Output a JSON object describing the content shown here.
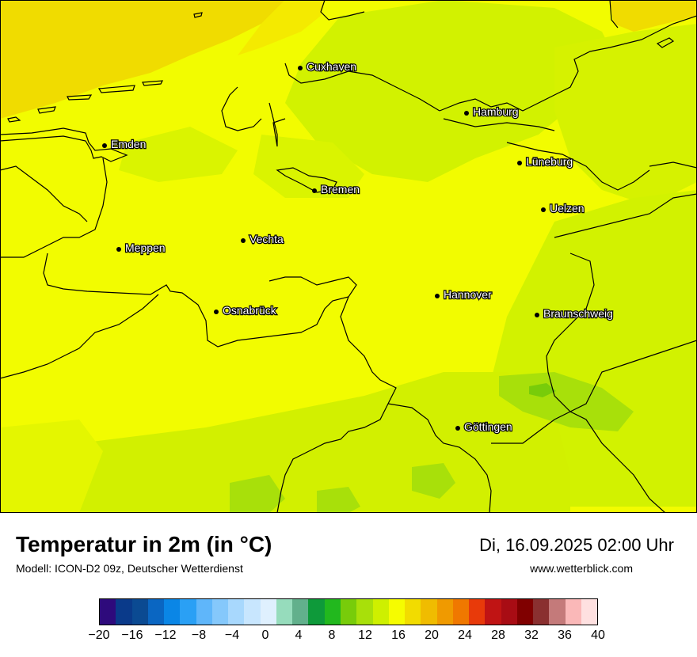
{
  "map": {
    "title": "Temperatur in 2m (in °C)",
    "model": "Modell: ICON-D2 09z, Deutscher Wetterdienst",
    "valid_time": "Di, 16.09.2025 02:00 Uhr",
    "website": "www.wetterblick.com",
    "cities": [
      {
        "name": "Cuxhaven"
      },
      {
        "name": "Hamburg"
      },
      {
        "name": "Emden"
      },
      {
        "name": "Lüneburg"
      },
      {
        "name": "Bremen"
      },
      {
        "name": "Uelzen"
      },
      {
        "name": "Vechta"
      },
      {
        "name": "Meppen"
      },
      {
        "name": "Hannover"
      },
      {
        "name": "Osnabrück"
      },
      {
        "name": "Braunschweig"
      },
      {
        "name": "Göttingen"
      }
    ]
  },
  "legend": {
    "colors": [
      "#2e0a7c",
      "#0a3a8a",
      "#0b4a92",
      "#0a66c2",
      "#0a86e6",
      "#2aa0f5",
      "#5fb6fa",
      "#85c8fb",
      "#a8d8fd",
      "#c8e6fe",
      "#dff0fe",
      "#96dcbc",
      "#62b08c",
      "#0e9a3a",
      "#22b81e",
      "#78cc0a",
      "#a8e00a",
      "#cef000",
      "#f6fc00",
      "#f2dc00",
      "#f0bc00",
      "#f09a00",
      "#f07800",
      "#e83a0a",
      "#c01414",
      "#a80c14",
      "#800000",
      "#8a3030",
      "#c47a7a",
      "#fab8b8",
      "#fee0e0"
    ],
    "tick_labels": [
      "−20",
      "−16",
      "−12",
      "−8",
      "−4",
      "0",
      "4",
      "8",
      "12",
      "16",
      "20",
      "24",
      "28",
      "32",
      "36",
      "40"
    ]
  }
}
